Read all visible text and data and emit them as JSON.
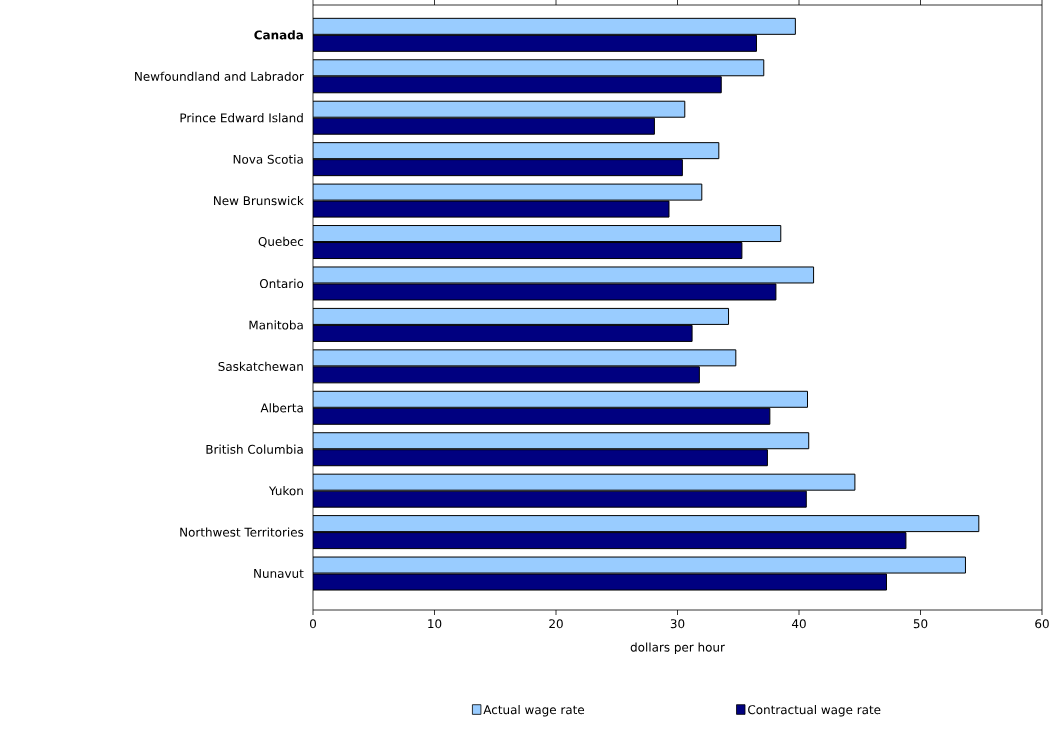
{
  "chart_data": {
    "type": "bar",
    "orientation": "horizontal",
    "xlabel": "dollars per hour",
    "categories": [
      "**Canada**",
      "Newfoundland and Labrador",
      "Prince Edward Island",
      "Nova Scotia",
      "New Brunswick",
      "Quebec",
      "Ontario",
      "Manitoba",
      "Saskatchewan",
      "Alberta",
      "British Columbia",
      "Yukon",
      "Northwest Territories",
      "Nunavut"
    ],
    "series": [
      {
        "name": "Actual wage rate",
        "color": "#99ccff",
        "values": [
          39.7,
          37.1,
          30.6,
          33.4,
          32.0,
          38.5,
          41.2,
          34.2,
          34.8,
          40.7,
          40.8,
          44.6,
          54.8,
          53.7
        ]
      },
      {
        "name": "Contractual wage rate",
        "color": "#000080",
        "values": [
          36.5,
          33.6,
          28.1,
          30.4,
          29.3,
          35.3,
          38.1,
          31.2,
          31.8,
          37.6,
          37.4,
          40.6,
          48.8,
          47.2
        ]
      }
    ],
    "xlim": [
      0,
      60
    ],
    "xticks": [
      0,
      10,
      20,
      30,
      40,
      50,
      60
    ],
    "grid": false,
    "legend": "bottom"
  }
}
